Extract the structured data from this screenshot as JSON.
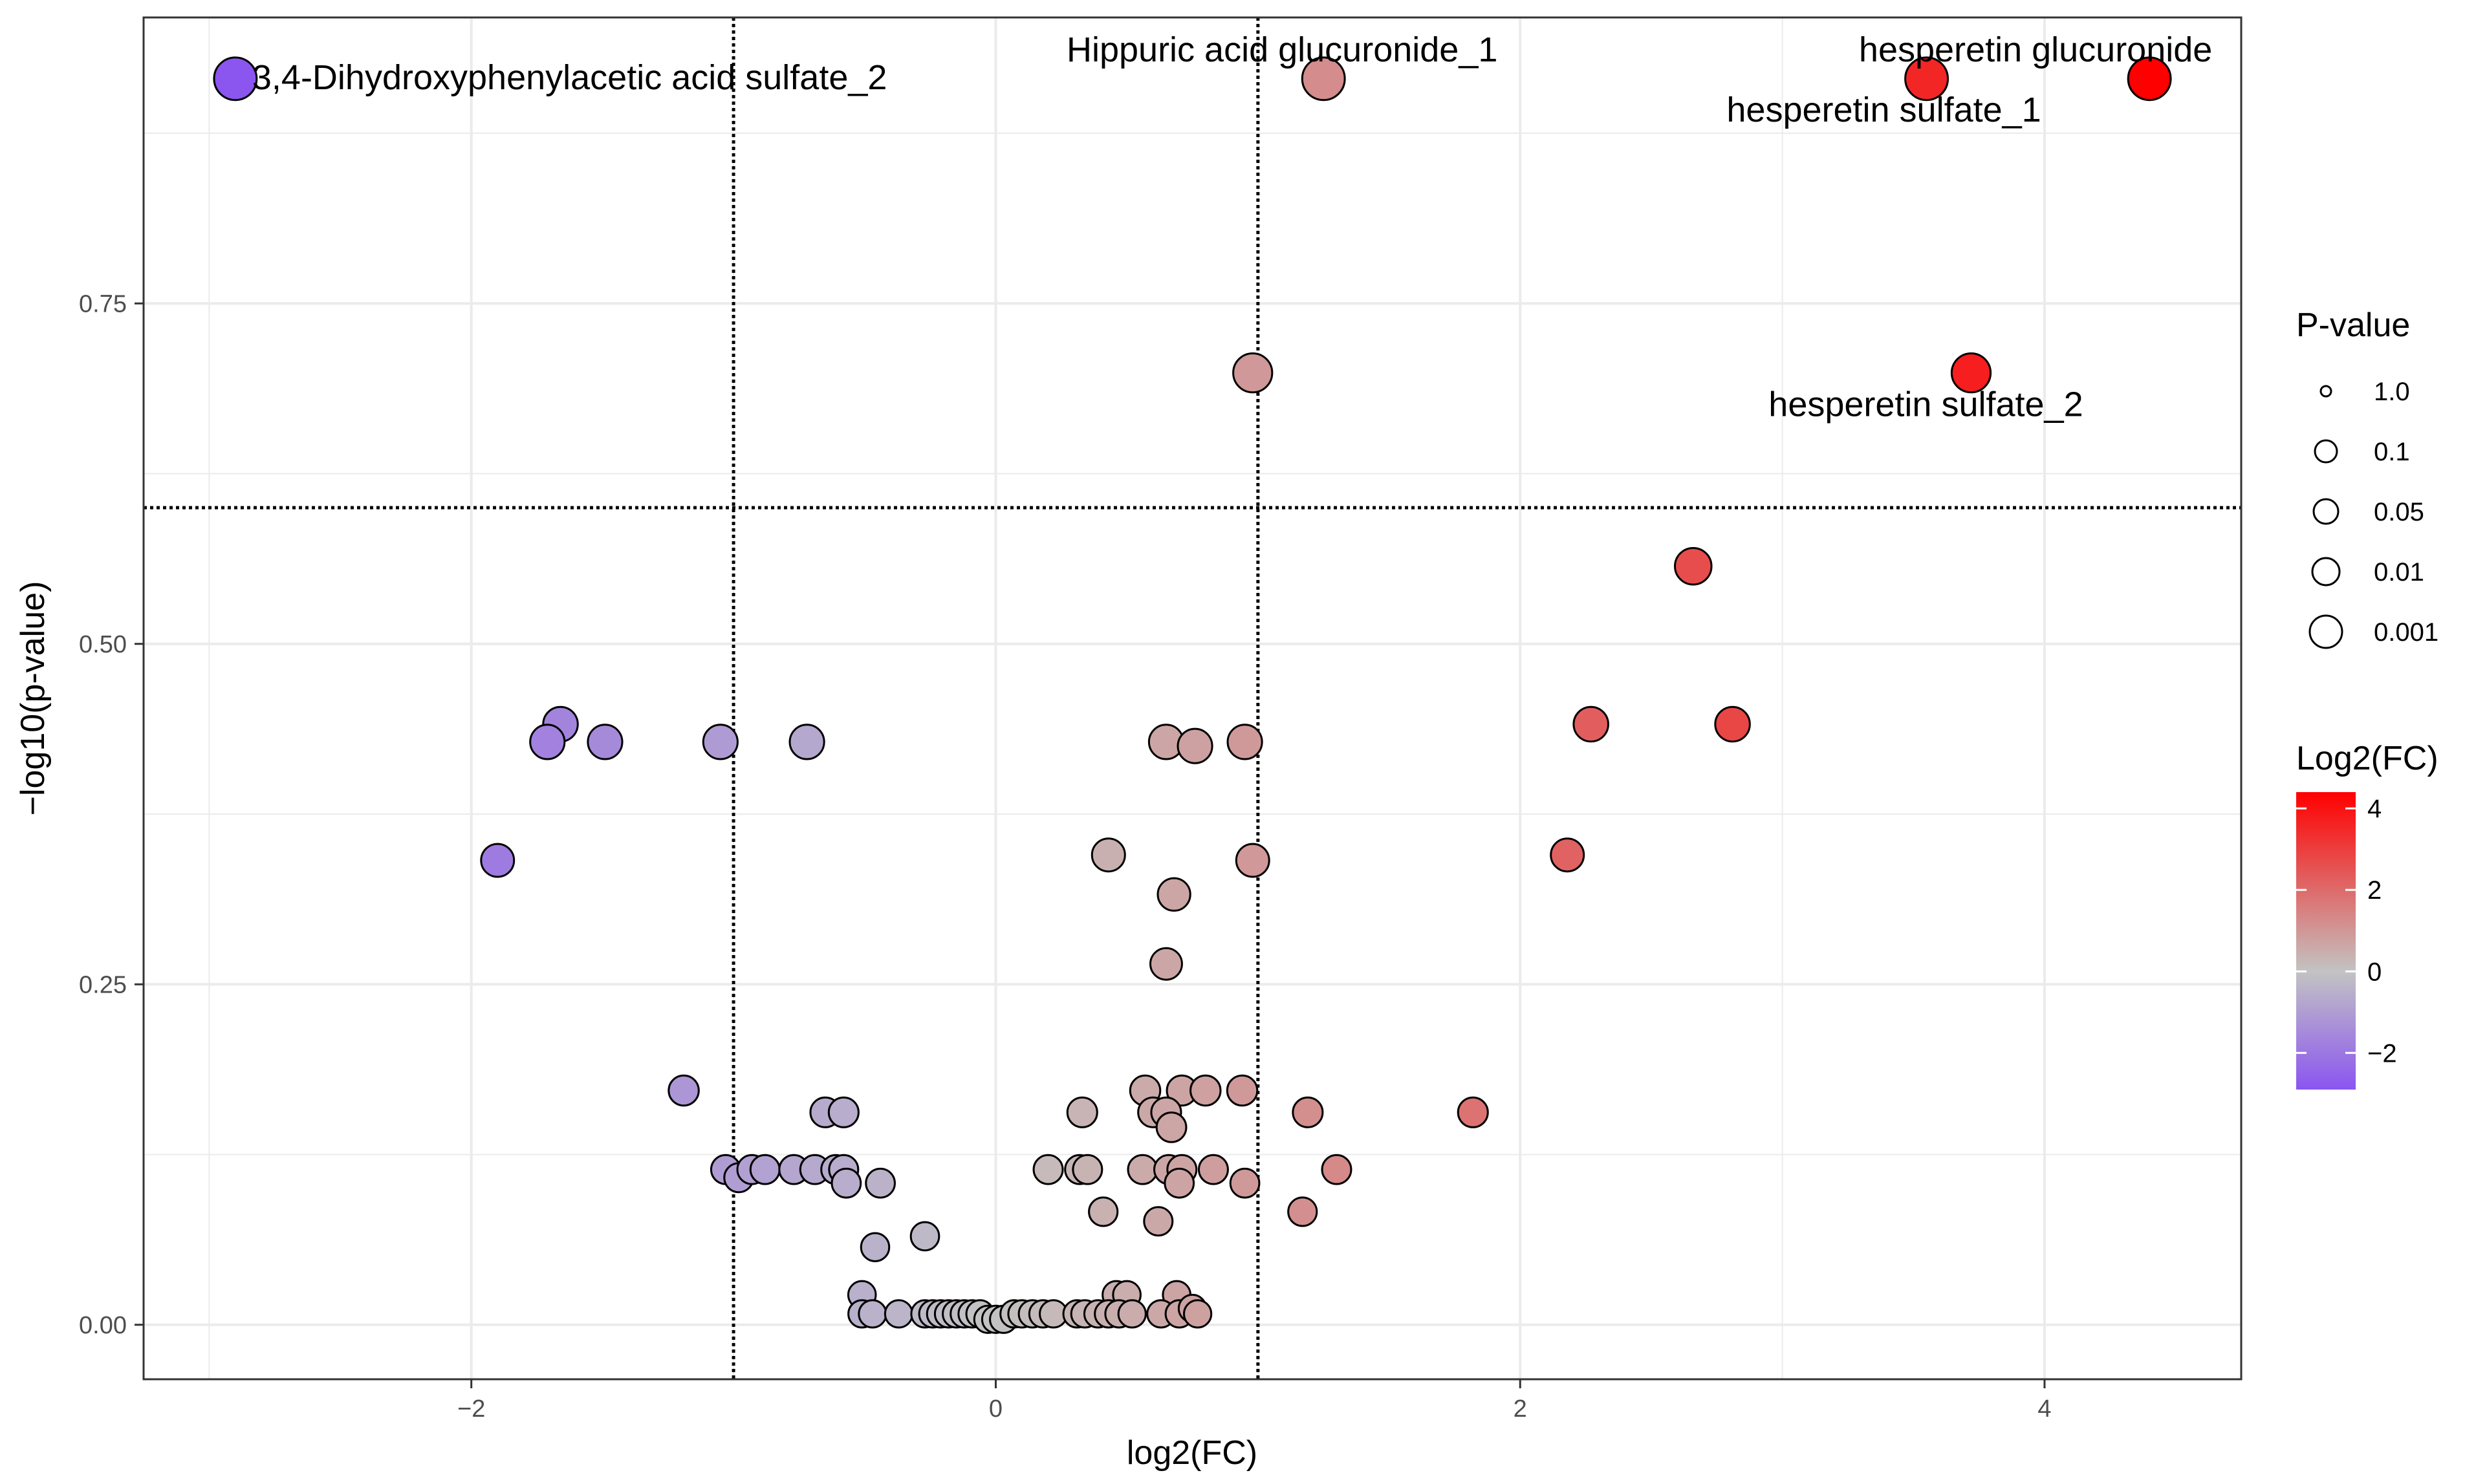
{
  "chart_data": {
    "type": "scatter",
    "title": "",
    "xlabel": "log2(FC)",
    "ylabel": "−log10(p-value)",
    "xlim": [
      -3.25,
      4.75
    ],
    "ylim": [
      -0.04,
      0.96
    ],
    "x_ticks": [
      -2,
      0,
      2,
      4
    ],
    "x_tick_labels": [
      "−2",
      "0",
      "2",
      "4"
    ],
    "y_ticks": [
      0.0,
      0.25,
      0.5,
      0.75
    ],
    "y_tick_labels": [
      "0.00",
      "0.25",
      "0.50",
      "0.75"
    ],
    "grid": true,
    "thresholds": {
      "vertical": [
        -1,
        1
      ],
      "horizontal": 0.6
    },
    "points": [
      {
        "x": -2.9,
        "y": 0.915
      },
      {
        "x": 1.25,
        "y": 0.915
      },
      {
        "x": 3.55,
        "y": 0.915
      },
      {
        "x": 4.4,
        "y": 0.915
      },
      {
        "x": 0.98,
        "y": 0.699
      },
      {
        "x": 3.72,
        "y": 0.699
      },
      {
        "x": 2.66,
        "y": 0.557
      },
      {
        "x": -1.66,
        "y": 0.441
      },
      {
        "x": -1.71,
        "y": 0.428
      },
      {
        "x": -1.49,
        "y": 0.428
      },
      {
        "x": -1.05,
        "y": 0.428
      },
      {
        "x": -0.72,
        "y": 0.428
      },
      {
        "x": 0.65,
        "y": 0.428
      },
      {
        "x": 0.76,
        "y": 0.425
      },
      {
        "x": 0.95,
        "y": 0.428
      },
      {
        "x": 2.27,
        "y": 0.441
      },
      {
        "x": 2.81,
        "y": 0.441
      },
      {
        "x": -1.9,
        "y": 0.341
      },
      {
        "x": 0.43,
        "y": 0.345
      },
      {
        "x": 0.98,
        "y": 0.341
      },
      {
        "x": 2.18,
        "y": 0.345
      },
      {
        "x": 0.68,
        "y": 0.316
      },
      {
        "x": 0.65,
        "y": 0.265
      },
      {
        "x": -1.19,
        "y": 0.172
      },
      {
        "x": 0.57,
        "y": 0.172
      },
      {
        "x": 0.71,
        "y": 0.172
      },
      {
        "x": 0.8,
        "y": 0.172
      },
      {
        "x": 0.94,
        "y": 0.172
      },
      {
        "x": -0.65,
        "y": 0.156
      },
      {
        "x": -0.58,
        "y": 0.156
      },
      {
        "x": 0.33,
        "y": 0.156
      },
      {
        "x": 0.6,
        "y": 0.156
      },
      {
        "x": 0.65,
        "y": 0.156
      },
      {
        "x": 0.67,
        "y": 0.145
      },
      {
        "x": 1.19,
        "y": 0.156
      },
      {
        "x": 1.82,
        "y": 0.156
      },
      {
        "x": -1.03,
        "y": 0.114
      },
      {
        "x": -0.98,
        "y": 0.108
      },
      {
        "x": -0.93,
        "y": 0.114
      },
      {
        "x": -0.88,
        "y": 0.114
      },
      {
        "x": -0.77,
        "y": 0.114
      },
      {
        "x": -0.69,
        "y": 0.114
      },
      {
        "x": -0.61,
        "y": 0.114
      },
      {
        "x": -0.58,
        "y": 0.114
      },
      {
        "x": -0.57,
        "y": 0.104
      },
      {
        "x": -0.44,
        "y": 0.104
      },
      {
        "x": 0.2,
        "y": 0.114
      },
      {
        "x": 0.32,
        "y": 0.114
      },
      {
        "x": 0.35,
        "y": 0.114
      },
      {
        "x": 0.56,
        "y": 0.114
      },
      {
        "x": 0.66,
        "y": 0.114
      },
      {
        "x": 0.71,
        "y": 0.114
      },
      {
        "x": 0.7,
        "y": 0.104
      },
      {
        "x": 0.83,
        "y": 0.114
      },
      {
        "x": 0.95,
        "y": 0.104
      },
      {
        "x": 1.3,
        "y": 0.114
      },
      {
        "x": 0.41,
        "y": 0.083
      },
      {
        "x": 0.62,
        "y": 0.076
      },
      {
        "x": 1.17,
        "y": 0.083
      },
      {
        "x": -0.27,
        "y": 0.065
      },
      {
        "x": -0.46,
        "y": 0.057
      },
      {
        "x": -0.51,
        "y": 0.022
      },
      {
        "x": 0.46,
        "y": 0.022
      },
      {
        "x": 0.5,
        "y": 0.022
      },
      {
        "x": 0.69,
        "y": 0.022
      },
      {
        "x": -0.51,
        "y": 0.008
      },
      {
        "x": -0.47,
        "y": 0.008
      },
      {
        "x": -0.37,
        "y": 0.008
      },
      {
        "x": -0.27,
        "y": 0.008
      },
      {
        "x": -0.24,
        "y": 0.008
      },
      {
        "x": -0.21,
        "y": 0.008
      },
      {
        "x": -0.18,
        "y": 0.008
      },
      {
        "x": -0.15,
        "y": 0.008
      },
      {
        "x": -0.12,
        "y": 0.008
      },
      {
        "x": -0.09,
        "y": 0.008
      },
      {
        "x": -0.06,
        "y": 0.008
      },
      {
        "x": -0.03,
        "y": 0.004
      },
      {
        "x": 0.0,
        "y": 0.004
      },
      {
        "x": 0.03,
        "y": 0.004
      },
      {
        "x": 0.07,
        "y": 0.008
      },
      {
        "x": 0.1,
        "y": 0.008
      },
      {
        "x": 0.14,
        "y": 0.008
      },
      {
        "x": 0.18,
        "y": 0.008
      },
      {
        "x": 0.22,
        "y": 0.008
      },
      {
        "x": 0.31,
        "y": 0.008
      },
      {
        "x": 0.34,
        "y": 0.008
      },
      {
        "x": 0.39,
        "y": 0.008
      },
      {
        "x": 0.43,
        "y": 0.008
      },
      {
        "x": 0.47,
        "y": 0.008
      },
      {
        "x": 0.52,
        "y": 0.008
      },
      {
        "x": 0.63,
        "y": 0.008
      },
      {
        "x": 0.7,
        "y": 0.008
      },
      {
        "x": 0.75,
        "y": 0.012
      },
      {
        "x": 0.77,
        "y": 0.008
      }
    ],
    "annotations": [
      {
        "text": "3,4-Dihydroxyphenylacetic acid sulfate_2",
        "x": -2.9,
        "y": 0.915
      },
      {
        "text": "Hippuric acid  glucuronide_1",
        "x": 1.25,
        "y": 0.915
      },
      {
        "text": "hesperetin glucuronide",
        "x": 4.4,
        "y": 0.915
      },
      {
        "text": "hesperetin sulfate_1",
        "x": 3.55,
        "y": 0.915
      },
      {
        "text": "hesperetin sulfate_2",
        "x": 3.72,
        "y": 0.699
      }
    ],
    "legend_size": {
      "title": "P-value",
      "labels": [
        "1.0",
        "0.1",
        "0.05",
        "0.01",
        "0.001"
      ]
    },
    "legend_color": {
      "title": "Log2(FC)",
      "ticks": [
        4,
        2,
        0,
        -2
      ],
      "tick_labels": [
        "4",
        "2",
        "0",
        "−2"
      ],
      "range": [
        -2.9,
        4.4
      ],
      "colors": {
        "low": "#8b55f0",
        "mid": "#c3c3c3",
        "high": "#ff0000"
      }
    }
  }
}
